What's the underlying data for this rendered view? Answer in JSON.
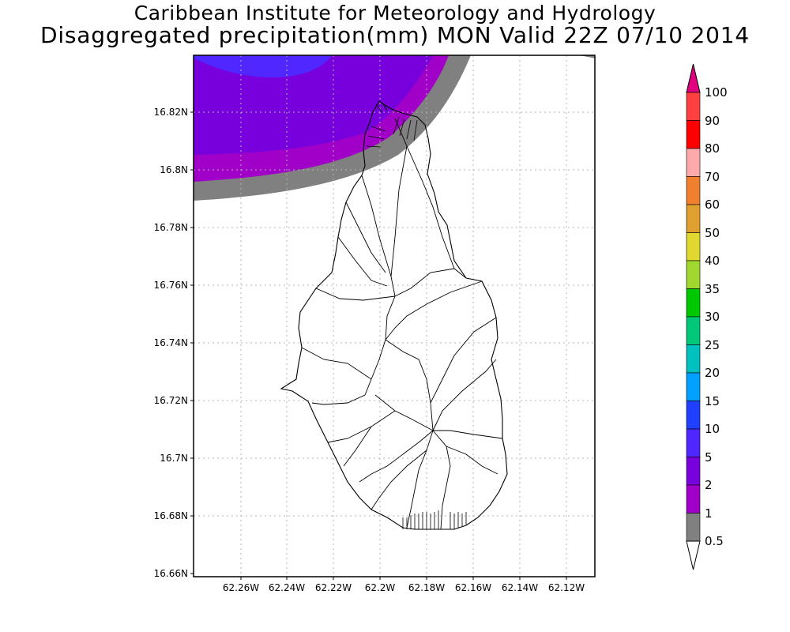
{
  "header": {
    "line1": "Caribbean Institute for Meteorology and Hydrology",
    "line2": "Disaggregated precipitation(mm) MON Valid 22Z 07/10 2014"
  },
  "map": {
    "lat_ticks": [
      "16.82N",
      "16.8N",
      "16.78N",
      "16.76N",
      "16.74N",
      "16.72N",
      "16.7N",
      "16.68N",
      "16.66N"
    ],
    "lon_ticks": [
      "62.26W",
      "62.24W",
      "62.22W",
      "62.2W",
      "62.18W",
      "62.16W",
      "62.14W",
      "62.12W"
    ],
    "grid": true
  },
  "colorbar": {
    "levels": [
      "100",
      "90",
      "80",
      "70",
      "60",
      "50",
      "40",
      "35",
      "30",
      "25",
      "20",
      "15",
      "10",
      "5",
      "2",
      "1",
      "0.5"
    ],
    "colors": [
      "#e00080",
      "#ff4040",
      "#ff0000",
      "#ffaaaa",
      "#f08030",
      "#e0a030",
      "#e0d830",
      "#a0d830",
      "#00c800",
      "#00c878",
      "#00c0c0",
      "#00a0ff",
      "#2040ff",
      "#5028ff",
      "#7800dc",
      "#a000c8",
      "#808080",
      "#ffffff"
    ]
  },
  "field_colors": {
    "gray": "#808080",
    "purple": "#a000c8",
    "violet": "#7800dc",
    "indigo": "#5028ff"
  }
}
